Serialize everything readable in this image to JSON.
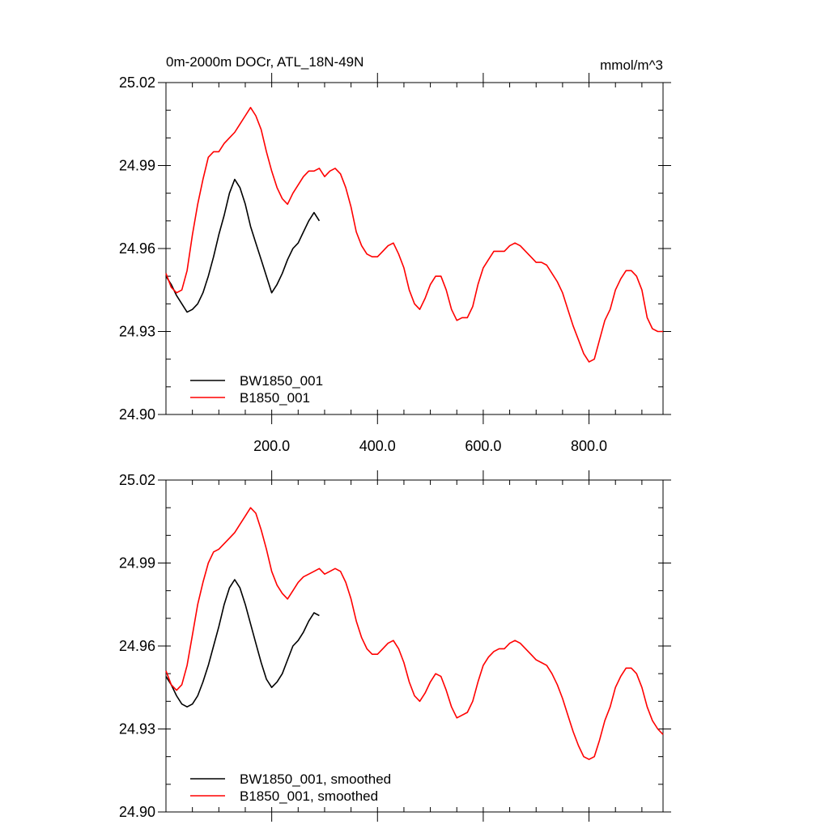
{
  "colors": {
    "series_1": "#000000",
    "series_2": "#ff0000"
  },
  "chart_data": [
    {
      "type": "line",
      "title": "0m-2000m DOCr, ATL_18N-49N",
      "units": "mmol/m^3",
      "xlim": [
        0,
        940
      ],
      "ylim": [
        24.9,
        25.02
      ],
      "yticks": [
        24.9,
        24.93,
        24.96,
        24.99,
        25.02
      ],
      "yticks_minor_step": 0.01,
      "xticks": [
        200,
        400,
        600,
        800
      ],
      "xticks_minor_step": 50,
      "xtick_labels": [
        "200.0",
        "400.0",
        "600.0",
        "800.0"
      ],
      "ytick_labels": [
        "24.90",
        "24.93",
        "24.96",
        "24.99",
        "25.02"
      ],
      "legend": {
        "position": "bottom-left",
        "labels": [
          "BW1850_001",
          "B1850_001"
        ]
      },
      "series": [
        {
          "name": "BW1850_001",
          "color": "#000000",
          "x": [
            0,
            10,
            20,
            30,
            40,
            50,
            60,
            70,
            80,
            90,
            100,
            110,
            120,
            130,
            140,
            150,
            160,
            170,
            180,
            190,
            200,
            210,
            220,
            230,
            240,
            250,
            260,
            270,
            280,
            290
          ],
          "y": [
            24.95,
            24.947,
            24.943,
            24.94,
            24.937,
            24.938,
            24.94,
            24.944,
            24.95,
            24.957,
            24.965,
            24.972,
            24.98,
            24.985,
            24.982,
            24.976,
            24.968,
            24.962,
            24.956,
            24.95,
            24.944,
            24.947,
            24.951,
            24.956,
            24.96,
            24.962,
            24.966,
            24.97,
            24.973,
            24.97
          ]
        },
        {
          "name": "B1850_001",
          "color": "#ff0000",
          "x": [
            0,
            10,
            20,
            30,
            40,
            50,
            60,
            70,
            80,
            90,
            100,
            110,
            120,
            130,
            140,
            150,
            160,
            170,
            180,
            190,
            200,
            210,
            220,
            230,
            240,
            250,
            260,
            270,
            280,
            290,
            300,
            310,
            320,
            330,
            340,
            350,
            360,
            370,
            380,
            390,
            400,
            410,
            420,
            430,
            440,
            450,
            460,
            470,
            480,
            490,
            500,
            510,
            520,
            530,
            540,
            550,
            560,
            570,
            580,
            590,
            600,
            610,
            620,
            630,
            640,
            650,
            660,
            670,
            680,
            690,
            700,
            710,
            720,
            730,
            740,
            750,
            760,
            770,
            780,
            790,
            800,
            810,
            820,
            830,
            840,
            850,
            860,
            870,
            880,
            890,
            900,
            910,
            920,
            930,
            940
          ],
          "y": [
            24.951,
            24.946,
            24.944,
            24.945,
            24.952,
            24.965,
            24.976,
            24.985,
            24.993,
            24.995,
            24.995,
            24.998,
            25.0,
            25.002,
            25.005,
            25.008,
            25.011,
            25.008,
            25.003,
            24.995,
            24.988,
            24.982,
            24.978,
            24.976,
            24.98,
            24.983,
            24.986,
            24.988,
            24.988,
            24.989,
            24.986,
            24.988,
            24.989,
            24.987,
            24.982,
            24.975,
            24.966,
            24.961,
            24.958,
            24.957,
            24.957,
            24.959,
            24.961,
            24.962,
            24.958,
            24.953,
            24.945,
            24.94,
            24.938,
            24.942,
            24.947,
            24.95,
            24.95,
            24.945,
            24.938,
            24.934,
            24.935,
            24.935,
            24.939,
            24.947,
            24.953,
            24.956,
            24.959,
            24.959,
            24.959,
            24.961,
            24.962,
            24.961,
            24.959,
            24.957,
            24.955,
            24.955,
            24.954,
            24.951,
            24.948,
            24.944,
            24.938,
            24.932,
            24.927,
            24.922,
            24.919,
            24.92,
            24.927,
            24.934,
            24.938,
            24.945,
            24.949,
            24.952,
            24.952,
            24.95,
            24.945,
            24.935,
            24.931,
            24.93,
            24.93
          ]
        }
      ]
    },
    {
      "type": "line",
      "xlim": [
        0,
        940
      ],
      "ylim": [
        24.9,
        25.02
      ],
      "yticks": [
        24.9,
        24.93,
        24.96,
        24.99,
        25.02
      ],
      "yticks_minor_step": 0.01,
      "xticks": [
        200,
        400,
        600,
        800
      ],
      "xticks_minor_step": 50,
      "ytick_labels": [
        "24.90",
        "24.93",
        "24.96",
        "24.99",
        "25.02"
      ],
      "legend": {
        "position": "bottom-left",
        "labels": [
          "BW1850_001, smoothed",
          "B1850_001, smoothed"
        ]
      },
      "series": [
        {
          "name": "BW1850_001, smoothed",
          "color": "#000000",
          "x": [
            0,
            10,
            20,
            30,
            40,
            50,
            60,
            70,
            80,
            90,
            100,
            110,
            120,
            130,
            140,
            150,
            160,
            170,
            180,
            190,
            200,
            210,
            220,
            230,
            240,
            250,
            260,
            270,
            280,
            290
          ],
          "y": [
            24.949,
            24.946,
            24.942,
            24.939,
            24.938,
            24.939,
            24.942,
            24.947,
            24.953,
            24.96,
            24.967,
            24.975,
            24.981,
            24.984,
            24.981,
            24.975,
            24.968,
            24.961,
            24.954,
            24.948,
            24.945,
            24.947,
            24.95,
            24.955,
            24.96,
            24.962,
            24.965,
            24.969,
            24.972,
            24.971
          ]
        },
        {
          "name": "B1850_001, smoothed",
          "color": "#ff0000",
          "x": [
            0,
            10,
            20,
            30,
            40,
            50,
            60,
            70,
            80,
            90,
            100,
            110,
            120,
            130,
            140,
            150,
            160,
            170,
            180,
            190,
            200,
            210,
            220,
            230,
            240,
            250,
            260,
            270,
            280,
            290,
            300,
            310,
            320,
            330,
            340,
            350,
            360,
            370,
            380,
            390,
            400,
            410,
            420,
            430,
            440,
            450,
            460,
            470,
            480,
            490,
            500,
            510,
            520,
            530,
            540,
            550,
            560,
            570,
            580,
            590,
            600,
            610,
            620,
            630,
            640,
            650,
            660,
            670,
            680,
            690,
            700,
            710,
            720,
            730,
            740,
            750,
            760,
            770,
            780,
            790,
            800,
            810,
            820,
            830,
            840,
            850,
            860,
            870,
            880,
            890,
            900,
            910,
            920,
            930,
            940
          ],
          "y": [
            24.951,
            24.946,
            24.944,
            24.946,
            24.953,
            24.964,
            24.975,
            24.983,
            24.99,
            24.994,
            24.995,
            24.997,
            24.999,
            25.001,
            25.004,
            25.007,
            25.01,
            25.008,
            25.002,
            24.995,
            24.987,
            24.982,
            24.979,
            24.977,
            24.98,
            24.983,
            24.985,
            24.986,
            24.987,
            24.988,
            24.986,
            24.987,
            24.988,
            24.987,
            24.983,
            24.977,
            24.969,
            24.963,
            24.959,
            24.957,
            24.957,
            24.959,
            24.961,
            24.962,
            24.959,
            24.954,
            24.947,
            24.942,
            24.94,
            24.943,
            24.947,
            24.95,
            24.949,
            24.944,
            24.938,
            24.934,
            24.935,
            24.936,
            24.94,
            24.947,
            24.953,
            24.956,
            24.958,
            24.959,
            24.959,
            24.961,
            24.962,
            24.961,
            24.959,
            24.957,
            24.955,
            24.954,
            24.953,
            24.95,
            24.946,
            24.941,
            24.935,
            24.929,
            24.924,
            24.92,
            24.919,
            24.92,
            24.926,
            24.933,
            24.938,
            24.945,
            24.949,
            24.952,
            24.952,
            24.95,
            24.945,
            24.938,
            24.933,
            24.93,
            24.928
          ]
        }
      ]
    }
  ]
}
